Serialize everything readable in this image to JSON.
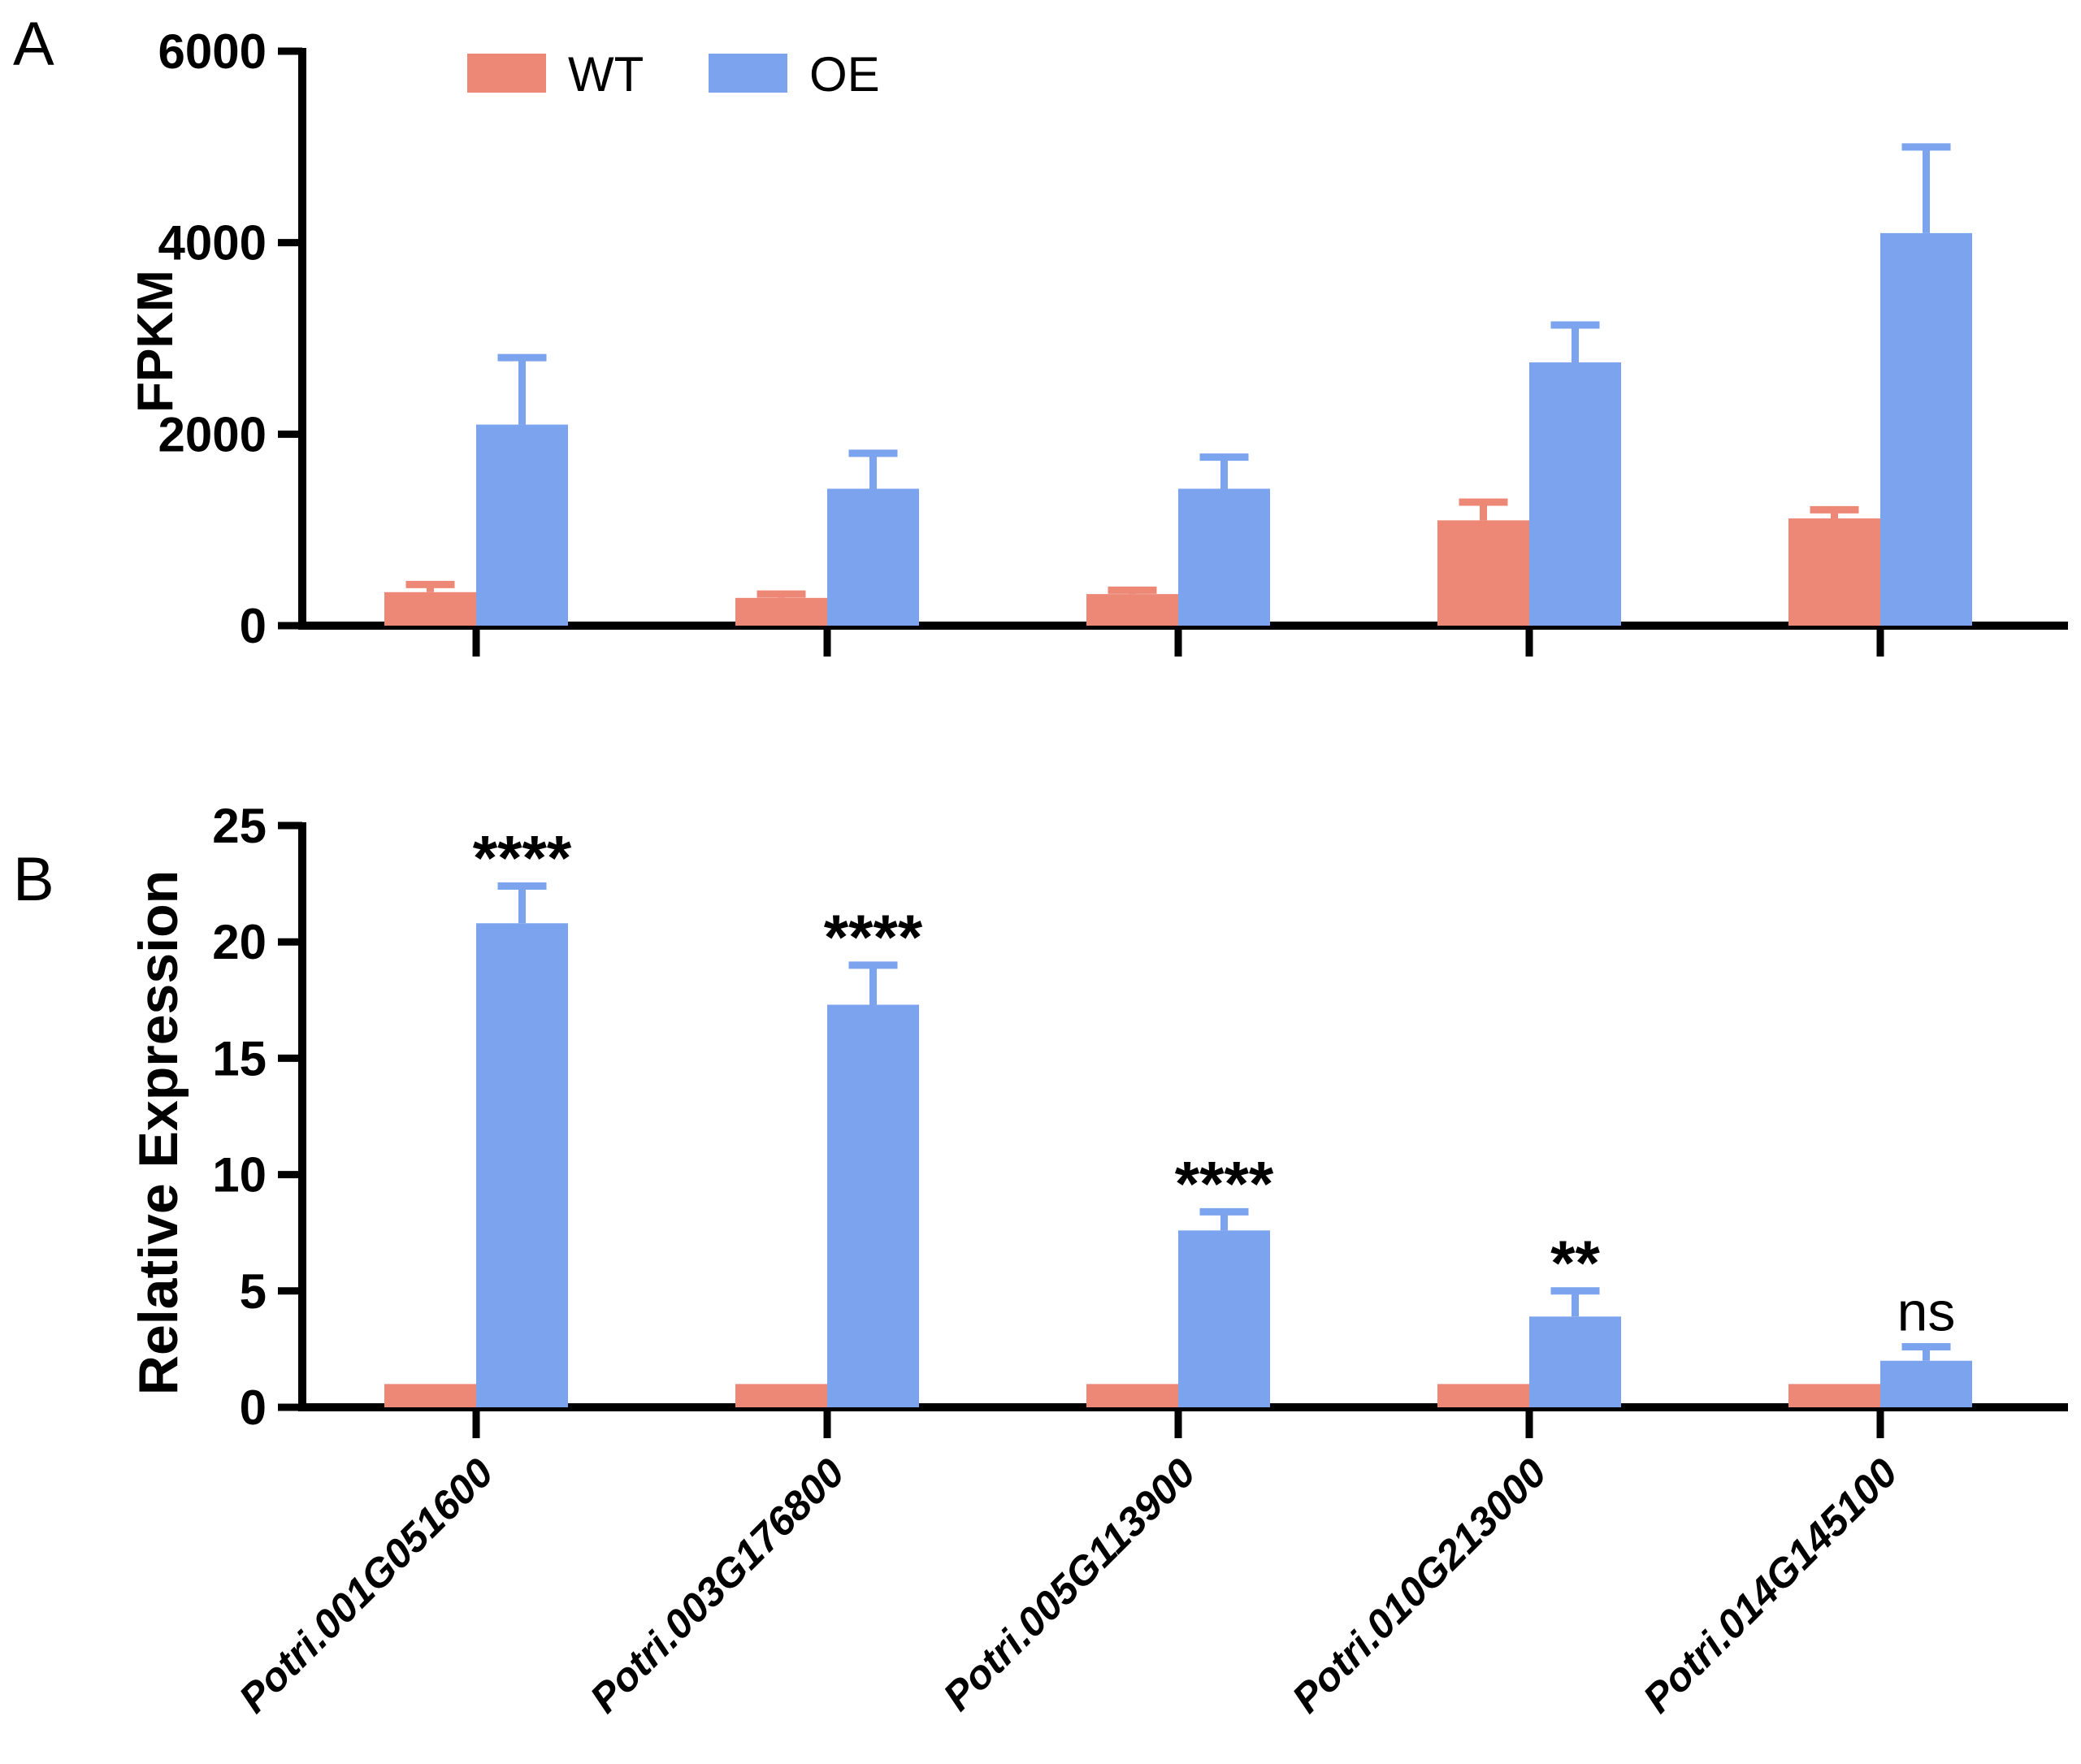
{
  "figure": {
    "panel_a_letter": "A",
    "panel_b_letter": "B"
  },
  "legend": {
    "wt_label": "WT",
    "oe_label": "OE",
    "position": "top"
  },
  "colors": {
    "wt": "#EE8876",
    "oe": "#7BA3EE",
    "axis": "#000000"
  },
  "categories": [
    "Potri.001G051600",
    "Potri.003G176800",
    "Potri.005G113900",
    "Potri.010G213000",
    "Potri.014G145100"
  ],
  "chart_data": [
    {
      "id": "A",
      "type": "bar",
      "title": "",
      "xlabel": "",
      "ylabel": "FPKM",
      "ylim": [
        0,
        6000
      ],
      "yticks": [
        0,
        2000,
        4000,
        6000
      ],
      "grid": false,
      "legend_position": "top",
      "x_tick_labels_visible": false,
      "categories": [
        "Potri.001G051600",
        "Potri.003G176800",
        "Potri.005G113900",
        "Potri.010G213000",
        "Potri.014G145100"
      ],
      "series": [
        {
          "name": "WT",
          "values": [
            350,
            290,
            330,
            1100,
            1120
          ],
          "errors": [
            80,
            40,
            40,
            190,
            90
          ]
        },
        {
          "name": "OE",
          "values": [
            2100,
            1430,
            1430,
            2750,
            4100
          ],
          "errors": [
            700,
            370,
            330,
            390,
            900
          ]
        }
      ]
    },
    {
      "id": "B",
      "type": "bar",
      "title": "",
      "xlabel": "",
      "ylabel": "Relative Expression",
      "ylim": [
        0,
        25
      ],
      "yticks": [
        0,
        5,
        10,
        15,
        20,
        25
      ],
      "grid": false,
      "x_tick_labels_visible": true,
      "categories": [
        "Potri.001G051600",
        "Potri.003G176800",
        "Potri.005G113900",
        "Potri.010G213000",
        "Potri.014G145100"
      ],
      "series": [
        {
          "name": "WT",
          "values": [
            1,
            1,
            1,
            1,
            1
          ],
          "errors": [
            0,
            0,
            0,
            0,
            0
          ]
        },
        {
          "name": "OE",
          "values": [
            20.8,
            17.3,
            7.6,
            3.9,
            2.0
          ],
          "errors": [
            1.6,
            1.7,
            0.8,
            1.1,
            0.6
          ]
        }
      ],
      "significance": [
        "****",
        "****",
        "****",
        "**",
        "ns"
      ]
    }
  ]
}
